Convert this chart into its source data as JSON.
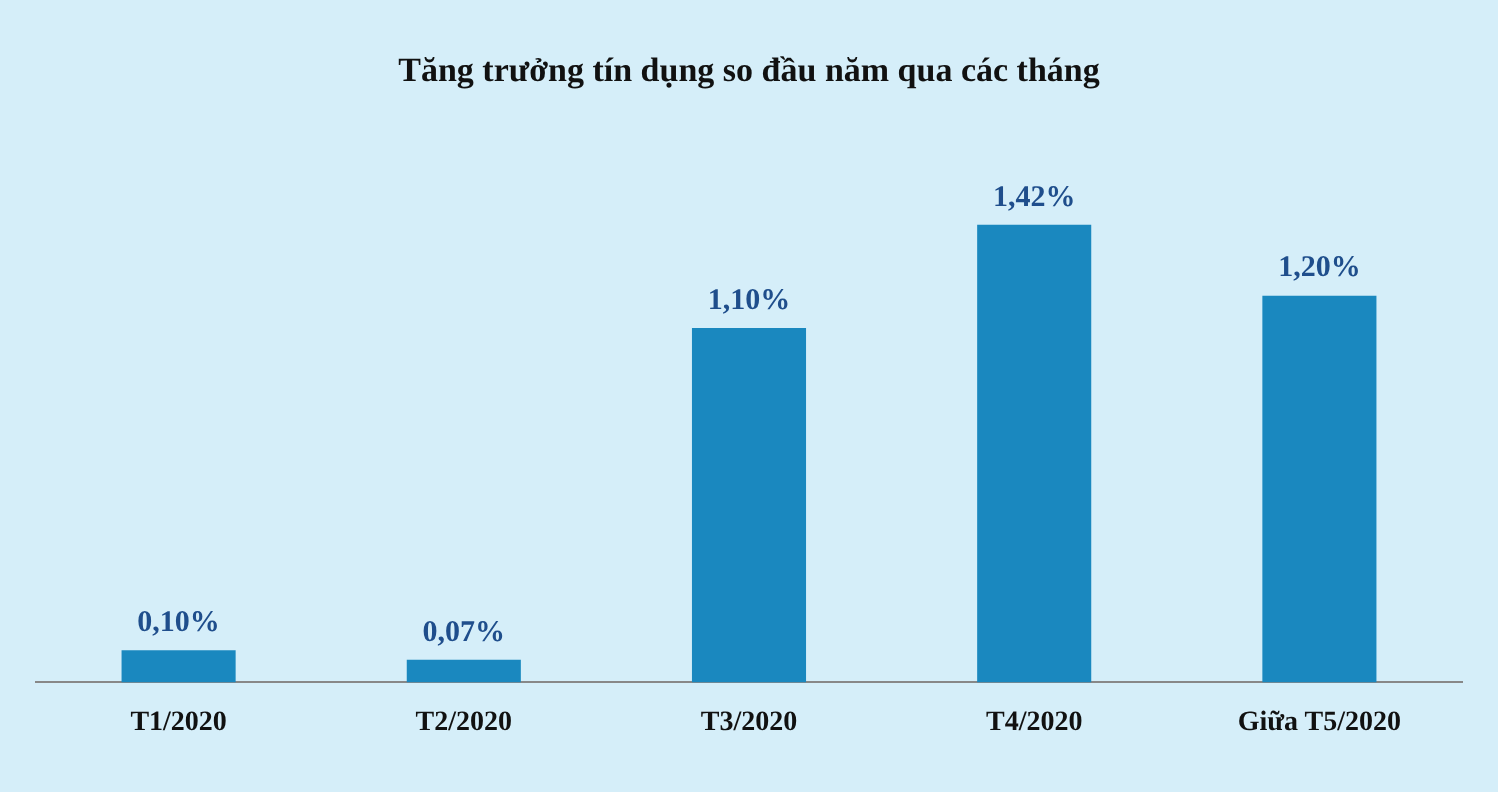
{
  "chart_data": {
    "type": "bar",
    "title": "Tăng trưởng tín dụng so đầu năm qua các tháng",
    "categories": [
      "T1/2020",
      "T2/2020",
      "T3/2020",
      "T4/2020",
      "Giữa T5/2020"
    ],
    "values": [
      0.1,
      0.07,
      1.1,
      1.42,
      1.2
    ],
    "value_labels": [
      "0,10%",
      "0,07%",
      "1,10%",
      "1,42%",
      "1,20%"
    ],
    "color": "#1a88bf",
    "grid": false,
    "legend": false
  }
}
